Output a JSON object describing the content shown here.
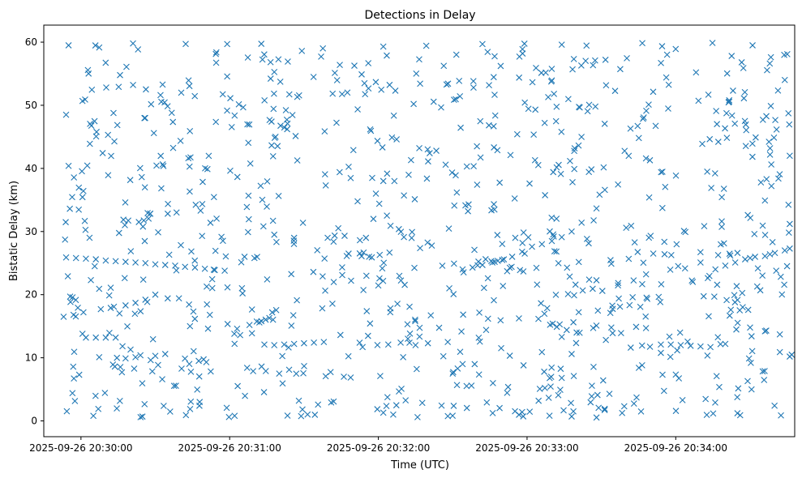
{
  "chart_data": {
    "type": "scatter",
    "title": "Detections in Delay",
    "xlabel": "Time (UTC)",
    "ylabel": "Bistatic Delay (km)",
    "x_ticks": [
      "2025-09-26 20:30:00",
      "2025-09-26 20:31:00",
      "2025-09-26 20:32:00",
      "2025-09-26 20:33:00",
      "2025-09-26 20:34:00"
    ],
    "y_ticks": [
      0,
      10,
      20,
      30,
      40,
      50,
      60
    ],
    "xlim": [
      "2025-09-26 20:29:45",
      "2025-09-26 20:34:48"
    ],
    "ylim": [
      -2.5,
      62.7
    ],
    "grid": false,
    "marker": "x",
    "color": "#1f77b4",
    "series": [
      {
        "points": [
          [
            "2025-09-26 20:29:54",
            25.9
          ],
          [
            "2025-09-26 20:29:58",
            25.8
          ],
          [
            "2025-09-26 20:30:02",
            25.7
          ],
          [
            "2025-09-26 20:30:06",
            25.6
          ],
          [
            "2025-09-26 20:30:10",
            25.4
          ],
          [
            "2025-09-26 20:30:14",
            25.3
          ],
          [
            "2025-09-26 20:30:18",
            25.2
          ],
          [
            "2025-09-26 20:30:22",
            25.1
          ],
          [
            "2025-09-26 20:30:26",
            25.0
          ],
          [
            "2025-09-26 20:30:30",
            24.8
          ],
          [
            "2025-09-26 20:30:34",
            24.7
          ],
          [
            "2025-09-26 20:30:38",
            24.6
          ],
          [
            "2025-09-26 20:30:42",
            24.4
          ],
          [
            "2025-09-26 20:30:46",
            24.3
          ],
          [
            "2025-09-26 20:30:50",
            24.1
          ],
          [
            "2025-09-26 20:30:54",
            23.9
          ],
          [
            "2025-09-26 20:30:58",
            23.8
          ],
          [
            "2025-09-26 20:29:53",
            16.5
          ],
          [
            "2025-09-26 20:29:57",
            16.8
          ],
          [
            "2025-09-26 20:30:01",
            17.2
          ],
          [
            "2025-09-26 20:30:02",
            13.2
          ],
          [
            "2025-09-26 20:30:06",
            13.2
          ],
          [
            "2025-09-26 20:30:10",
            13.2
          ],
          [
            "2025-09-26 20:30:14",
            13.2
          ],
          [
            "2025-09-26 20:30:08",
            17.7
          ],
          [
            "2025-09-26 20:30:12",
            17.9
          ],
          [
            "2025-09-26 20:30:18",
            18.3
          ],
          [
            "2025-09-26 20:30:22",
            18.7
          ],
          [
            "2025-09-26 20:30:26",
            19.2
          ],
          [
            "2025-09-26 20:30:30",
            20.0
          ],
          [
            "2025-09-26 20:30:04",
            22.3
          ],
          [
            "2025-09-26 20:30:12",
            21.1
          ],
          [
            "2025-09-26 20:30:18",
            9.9
          ],
          [
            "2025-09-26 20:30:22",
            10.1
          ],
          [
            "2025-09-26 20:30:30",
            10.3
          ],
          [
            "2025-09-26 20:30:34",
            10.6
          ],
          [
            "2025-09-26 20:30:24",
            10.4
          ],
          [
            "2025-09-26 20:30:44",
            15.0
          ],
          [
            "2025-09-26 20:30:52",
            16.8
          ],
          [
            "2025-09-26 20:31:03",
            14.6
          ],
          [
            "2025-09-26 20:31:08",
            15.2
          ],
          [
            "2025-09-26 20:31:12",
            15.6
          ],
          [
            "2025-09-26 20:31:16",
            16.3
          ],
          [
            "2025-09-26 20:31:06",
            26.0
          ],
          [
            "2025-09-26 20:31:10",
            25.8
          ],
          [
            "2025-09-26 20:31:18",
            29.5
          ],
          [
            "2025-09-26 20:31:26",
            29.0
          ],
          [
            "2025-09-26 20:31:14",
            12.1
          ],
          [
            "2025-09-26 20:31:18",
            12.0
          ],
          [
            "2025-09-26 20:31:22",
            12.1
          ],
          [
            "2025-09-26 20:31:26",
            12.2
          ],
          [
            "2025-09-26 20:31:30",
            12.3
          ],
          [
            "2025-09-26 20:31:34",
            12.4
          ],
          [
            "2025-09-26 20:31:38",
            12.5
          ],
          [
            "2025-09-26 20:31:20",
            7.5
          ],
          [
            "2025-09-26 20:31:24",
            8.1
          ],
          [
            "2025-09-26 20:31:42",
            22.0
          ],
          [
            "2025-09-26 20:31:48",
            26.5
          ],
          [
            "2025-09-26 20:31:55",
            29.0
          ],
          [
            "2025-09-26 20:31:58",
            32.0
          ],
          [
            "2025-09-26 20:31:59",
            36.0
          ],
          [
            "2025-09-26 20:32:02",
            38.0
          ],
          [
            "2025-09-26 20:32:04",
            12.1
          ],
          [
            "2025-09-26 20:32:09",
            12.4
          ],
          [
            "2025-09-26 20:32:20",
            12.3
          ],
          [
            "2025-09-26 20:32:28",
            12.5
          ],
          [
            "2025-09-26 20:32:10",
            10.1
          ],
          [
            "2025-09-26 20:32:15",
            12.0
          ],
          [
            "2025-09-26 20:32:02",
            1.3
          ],
          [
            "2025-09-26 20:32:06",
            1.0
          ],
          [
            "2025-09-26 20:32:30",
            7.5
          ],
          [
            "2025-09-26 20:32:32",
            8.3
          ],
          [
            "2025-09-26 20:32:34",
            9.0
          ],
          [
            "2025-09-26 20:32:34",
            24.0
          ],
          [
            "2025-09-26 20:32:38",
            24.3
          ],
          [
            "2025-09-26 20:32:42",
            24.7
          ],
          [
            "2025-09-26 20:32:46",
            25.1
          ],
          [
            "2025-09-26 20:32:50",
            25.5
          ],
          [
            "2025-09-26 20:32:54",
            26.0
          ],
          [
            "2025-09-26 20:32:58",
            26.8
          ],
          [
            "2025-09-26 20:33:02",
            27.6
          ],
          [
            "2025-09-26 20:33:06",
            28.0
          ],
          [
            "2025-09-26 20:33:10",
            28.5
          ],
          [
            "2025-09-26 20:33:14",
            29.1
          ],
          [
            "2025-09-26 20:33:18",
            30.0
          ],
          [
            "2025-09-26 20:33:22",
            31.4
          ],
          [
            "2025-09-26 20:33:12",
            14.9
          ],
          [
            "2025-09-26 20:33:16",
            14.4
          ],
          [
            "2025-09-26 20:33:20",
            14.0
          ],
          [
            "2025-09-26 20:33:14",
            13.3
          ],
          [
            "2025-09-26 20:33:06",
            10.9
          ],
          [
            "2025-09-26 20:33:18",
            10.6
          ],
          [
            "2025-09-26 20:33:34",
            24.9
          ],
          [
            "2025-09-26 20:33:40",
            30.6
          ],
          [
            "2025-09-26 20:33:42",
            30.9
          ],
          [
            "2025-09-26 20:33:28",
            15.1
          ],
          [
            "2025-09-26 20:33:34",
            14.8
          ],
          [
            "2025-09-26 20:33:44",
            14.9
          ],
          [
            "2025-09-26 20:33:48",
            14.7
          ],
          [
            "2025-09-26 20:33:54",
            12.1
          ],
          [
            "2025-09-26 20:33:58",
            12.1
          ],
          [
            "2025-09-26 20:34:02",
            12.0
          ],
          [
            "2025-09-26 20:34:06",
            11.9
          ],
          [
            "2025-09-26 20:34:10",
            11.8
          ],
          [
            "2025-09-26 20:34:14",
            11.7
          ],
          [
            "2025-09-26 20:34:20",
            12.2
          ],
          [
            "2025-09-26 20:34:16",
            24.0
          ],
          [
            "2025-09-26 20:34:20",
            24.6
          ],
          [
            "2025-09-26 20:34:24",
            25.1
          ],
          [
            "2025-09-26 20:34:28",
            25.6
          ],
          [
            "2025-09-26 20:34:32",
            26.0
          ],
          [
            "2025-09-26 20:34:36",
            26.1
          ],
          [
            "2025-09-26 20:34:38",
            26.4
          ],
          [
            "2025-09-26 20:34:40",
            26.6
          ],
          [
            "2025-09-26 20:34:44",
            27.0
          ],
          [
            "2025-09-26 20:34:46",
            27.3
          ],
          [
            "2025-09-26 20:34:10",
            25.1
          ],
          [
            "2025-09-26 20:34:22",
            26.2
          ],
          [
            "2025-09-26 20:34:30",
            25.8
          ],
          [
            "2025-09-26 20:34:30",
            14.8
          ],
          [
            "2025-09-26 20:34:36",
            14.2
          ],
          [
            "2025-09-26 20:34:42",
            13.7
          ],
          [
            "2025-09-26 20:34:42",
            10.9
          ],
          [
            "2025-09-26 20:34:46",
            10.2
          ],
          [
            "2025-09-26 20:34:46",
            31.2
          ],
          [
            "2025-09-26 20:29:55",
            59.5
          ],
          [
            "2025-09-26 20:30:21",
            59.8
          ],
          [
            "2025-09-26 20:30:59",
            59.7
          ],
          [
            "2025-09-26 20:32:02",
            59.3
          ],
          [
            "2025-09-26 20:32:42",
            59.7
          ],
          [
            "2025-09-26 20:33:14",
            59.6
          ],
          [
            "2025-09-26 20:34:31",
            59.5
          ],
          [
            "2025-09-26 20:34:45",
            58.1
          ],
          [
            "2025-09-26 20:30:05",
            0.8
          ],
          [
            "2025-09-26 20:30:07",
            1.9
          ],
          [
            "2025-09-26 20:31:02",
            0.8
          ],
          [
            "2025-09-26 20:32:58",
            1.4
          ],
          [
            "2025-09-26 20:33:18",
            0.7
          ],
          [
            "2025-09-26 20:34:26",
            0.9
          ],
          [
            "2025-09-26 20:33:46",
            1.5
          ],
          [
            "2025-09-26 20:34:46",
            42.0
          ],
          [
            "2025-09-26 20:34:44",
            54.0
          ],
          [
            "2025-09-26 20:29:54",
            48.5
          ],
          [
            "2025-09-26 20:29:55",
            40.4
          ]
        ]
      }
    ],
    "background_scatter": {
      "note_count": 900,
      "x_range": [
        "2025-09-26 20:29:53",
        "2025-09-26 20:34:47"
      ],
      "y_range": [
        0.5,
        60
      ]
    }
  }
}
